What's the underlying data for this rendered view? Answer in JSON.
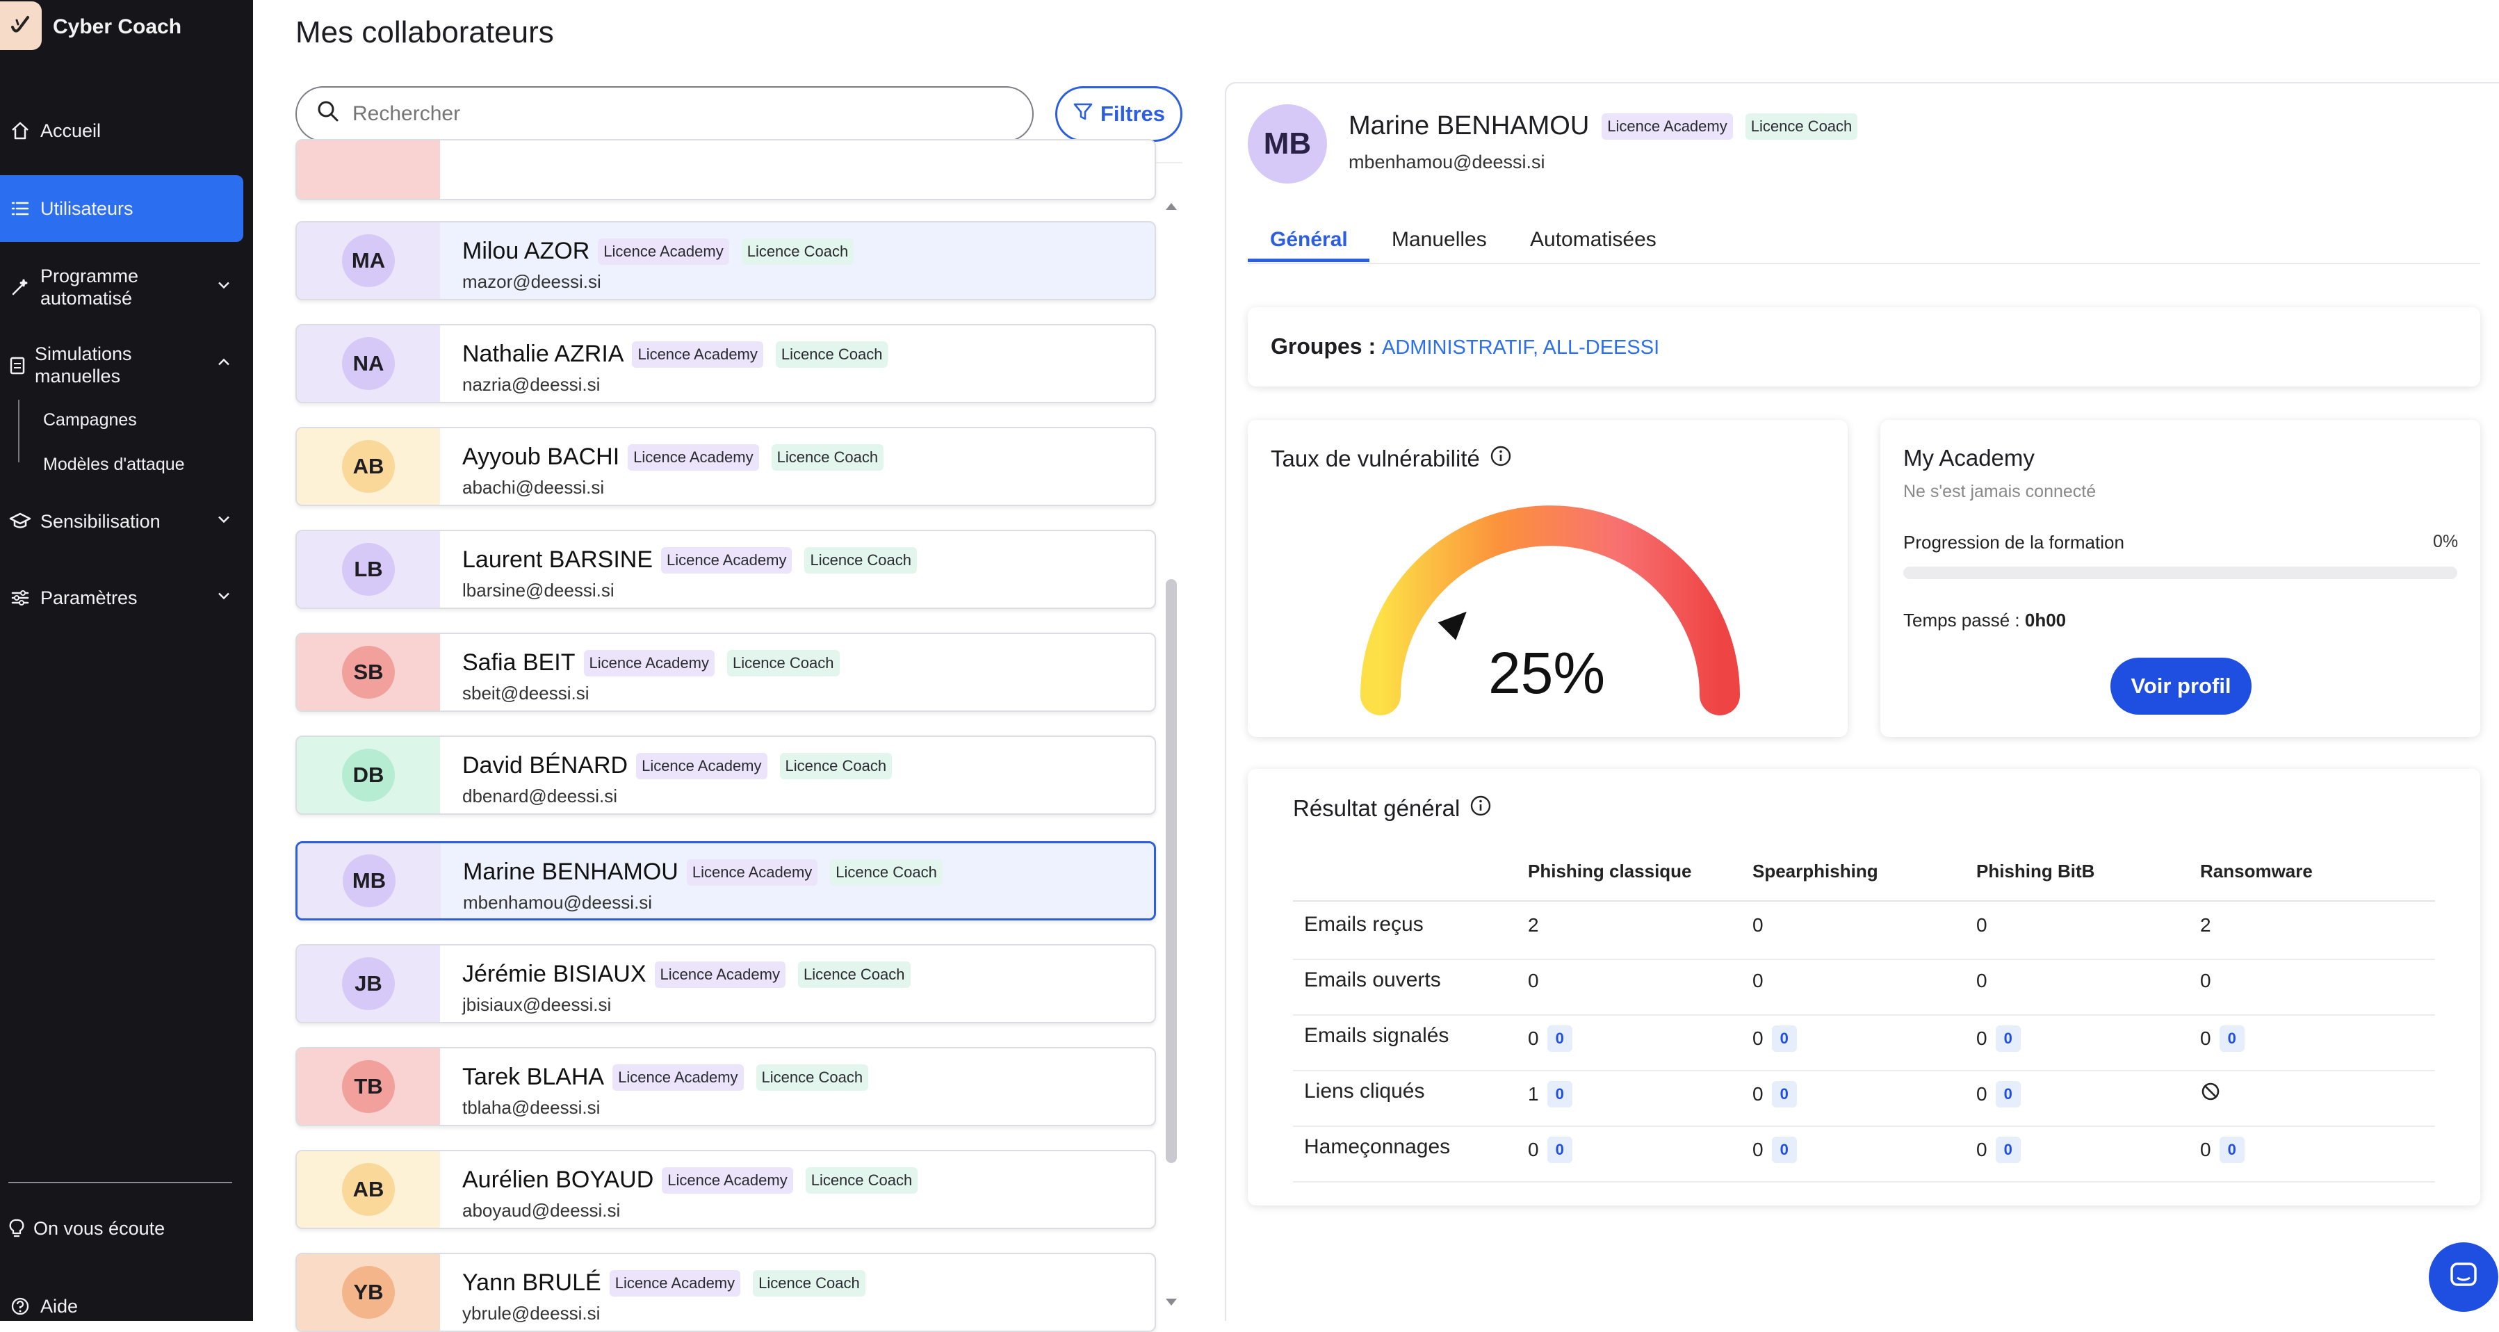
{
  "app": {
    "name": "Cyber Coach"
  },
  "sidebar": {
    "items": [
      {
        "label": "Accueil",
        "icon": "home-icon"
      },
      {
        "label": "Utilisateurs",
        "icon": "list-icon"
      },
      {
        "label": "Programme automatisé",
        "icon": "magic-icon"
      },
      {
        "label": "Simulations manuelles",
        "icon": "clipboard-icon"
      },
      {
        "label": "Sensibilisation",
        "icon": "graduation-icon"
      },
      {
        "label": "Paramètres",
        "icon": "sliders-icon"
      }
    ],
    "sub_items": [
      "Campagnes",
      "Modèles d'attaque"
    ],
    "footer": [
      {
        "label": "On vous écoute",
        "icon": "lightbulb-icon"
      },
      {
        "label": "Aide",
        "icon": "help-icon"
      }
    ]
  },
  "list": {
    "title": "Mes collaborateurs",
    "search_placeholder": "Rechercher",
    "filters_label": "Filtres",
    "users": [
      {
        "initials": "MA",
        "name": "Milou AZOR",
        "email": "mazor@deessi.si",
        "avatar_bg": "#d6c9f7",
        "zone_bg": "#ece6fb"
      },
      {
        "initials": "NA",
        "name": "Nathalie AZRIA",
        "email": "nazria@deessi.si",
        "avatar_bg": "#d6c9f7",
        "zone_bg": "#ece6fb"
      },
      {
        "initials": "AB",
        "name": "Ayyoub BACHI",
        "email": "abachi@deessi.si",
        "avatar_bg": "#fad89a",
        "zone_bg": "#fdf1d6"
      },
      {
        "initials": "LB",
        "name": "Laurent BARSINE",
        "email": "lbarsine@deessi.si",
        "avatar_bg": "#d6c9f7",
        "zone_bg": "#ece6fb"
      },
      {
        "initials": "SB",
        "name": "Safia BEIT",
        "email": "sbeit@deessi.si",
        "avatar_bg": "#f2a09c",
        "zone_bg": "#f8d3d1"
      },
      {
        "initials": "DB",
        "name": "David BÉNARD",
        "email": "dbenard@deessi.si",
        "avatar_bg": "#b6ecd2",
        "zone_bg": "#dcf6ea"
      },
      {
        "initials": "MB",
        "name": "Marine BENHAMOU",
        "email": "mbenhamou@deessi.si",
        "avatar_bg": "#d6c9f7",
        "zone_bg": "#ece6fb"
      },
      {
        "initials": "JB",
        "name": "Jérémie BISIAUX",
        "email": "jbisiaux@deessi.si",
        "avatar_bg": "#d6c9f7",
        "zone_bg": "#ece6fb"
      },
      {
        "initials": "TB",
        "name": "Tarek BLAHA",
        "email": "tblaha@deessi.si",
        "avatar_bg": "#f2a09c",
        "zone_bg": "#f8d3d1"
      },
      {
        "initials": "AB",
        "name": "Aurélien BOYAUD",
        "email": "aboyaud@deessi.si",
        "avatar_bg": "#fad89a",
        "zone_bg": "#fdf1d6"
      },
      {
        "initials": "YB",
        "name": "Yann BRULÉ",
        "email": "ybrule@deessi.si",
        "avatar_bg": "#f5b58a",
        "zone_bg": "#fadcc6"
      }
    ],
    "badge_academy": "Licence Academy",
    "badge_coach": "Licence Coach"
  },
  "profile": {
    "initials": "MB",
    "name": "Marine BENHAMOU",
    "email": "mbenhamou@deessi.si",
    "badge_academy": "Licence Academy",
    "badge_coach": "Licence Coach",
    "tabs": [
      "Général",
      "Manuelles",
      "Automatisées"
    ],
    "groups_label": "Groupes :",
    "groups_value": "ADMINISTRATIF, ALL-DEESSI",
    "vulnerability": {
      "title": "Taux de vulnérabilité",
      "value_text": "25%",
      "value": 0.25
    },
    "academy": {
      "title": "My Academy",
      "status": "Ne s'est jamais connecté",
      "progress_label": "Progression de la formation",
      "progress_text": "0%",
      "progress_value": 0,
      "time_label": "Temps passé :",
      "time_value": "0h00",
      "button": "Voir profil"
    },
    "results": {
      "title": "Résultat général",
      "columns": [
        "Phishing classique",
        "Spearphishing",
        "Phishing BitB",
        "Ransomware"
      ],
      "rows": [
        {
          "label": "Emails reçus",
          "cells": [
            {
              "v": "2"
            },
            {
              "v": "0"
            },
            {
              "v": "0"
            },
            {
              "v": "2"
            }
          ]
        },
        {
          "label": "Emails ouverts",
          "cells": [
            {
              "v": "0"
            },
            {
              "v": "0"
            },
            {
              "v": "0"
            },
            {
              "v": "0"
            }
          ]
        },
        {
          "label": "Emails signalés",
          "cells": [
            {
              "v": "0",
              "chip": "0"
            },
            {
              "v": "0",
              "chip": "0"
            },
            {
              "v": "0",
              "chip": "0"
            },
            {
              "v": "0",
              "chip": "0"
            }
          ]
        },
        {
          "label": "Liens cliqués",
          "cells": [
            {
              "v": "1",
              "chip": "0"
            },
            {
              "v": "0",
              "chip": "0"
            },
            {
              "v": "0",
              "chip": "0"
            },
            {
              "na": true
            }
          ]
        },
        {
          "label": "Hameçonnages",
          "cells": [
            {
              "v": "0",
              "chip": "0"
            },
            {
              "v": "0",
              "chip": "0"
            },
            {
              "v": "0",
              "chip": "0"
            },
            {
              "v": "0",
              "chip": "0"
            }
          ]
        }
      ]
    }
  },
  "colors": {
    "accent": "#2b5fe0",
    "sidebar_bg": "#16161a",
    "active_nav": "#2b6ff0"
  }
}
